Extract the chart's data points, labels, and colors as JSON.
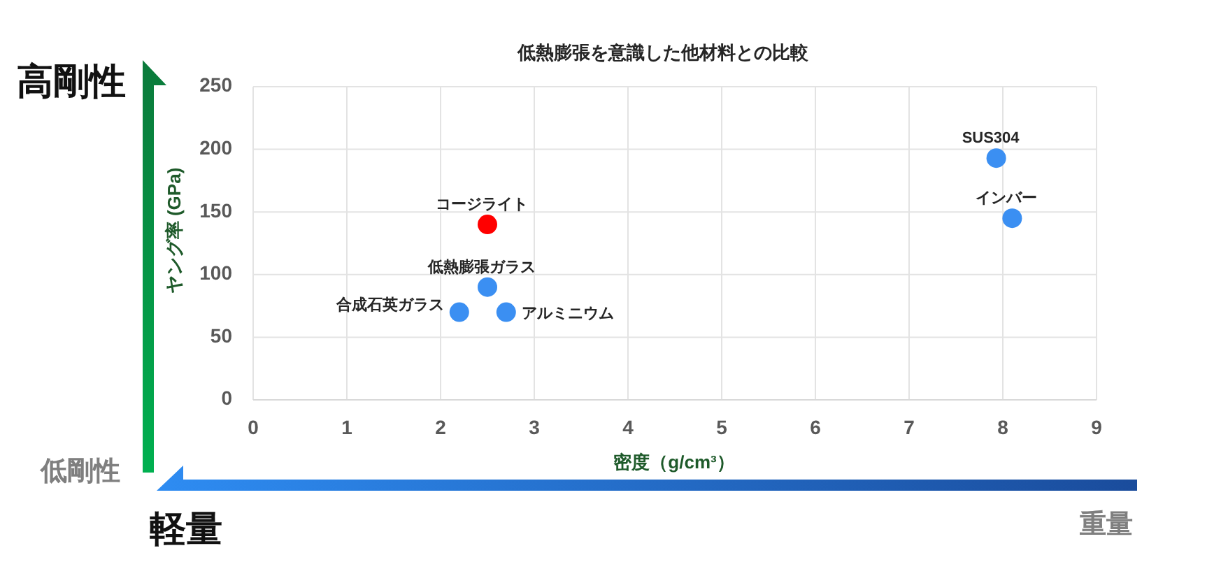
{
  "chart_data": {
    "type": "scatter",
    "title": "低熱膨張を意識した他材料との比較",
    "xlabel": "密度（g/cm³）",
    "ylabel": "ヤング率 (GPa)",
    "xlim": [
      0,
      9
    ],
    "ylim": [
      0,
      250
    ],
    "xticks": [
      0,
      1,
      2,
      3,
      4,
      5,
      6,
      7,
      8,
      9
    ],
    "yticks": [
      0,
      50,
      100,
      150,
      200,
      250
    ],
    "grid": true,
    "marker": "circle",
    "series": [
      {
        "name": "コージライト",
        "color": "#ff0000",
        "x": [
          2.5
        ],
        "values": [
          140
        ]
      },
      {
        "name": "低熱膨張ガラス",
        "color": "#3b8ff2",
        "x": [
          2.5
        ],
        "values": [
          90
        ]
      },
      {
        "name": "合成石英ガラス",
        "color": "#3b8ff2",
        "x": [
          2.2
        ],
        "values": [
          70
        ]
      },
      {
        "name": "アルミニウム",
        "color": "#3b8ff2",
        "x": [
          2.7
        ],
        "values": [
          70
        ]
      },
      {
        "name": "SUS304",
        "color": "#3b8ff2",
        "x": [
          7.93
        ],
        "values": [
          193
        ]
      },
      {
        "name": "インバー",
        "color": "#3b8ff2",
        "x": [
          8.1
        ],
        "values": [
          145
        ]
      }
    ],
    "annotations": [
      "高剛性",
      "低剛性",
      "軽量",
      "重量"
    ]
  }
}
